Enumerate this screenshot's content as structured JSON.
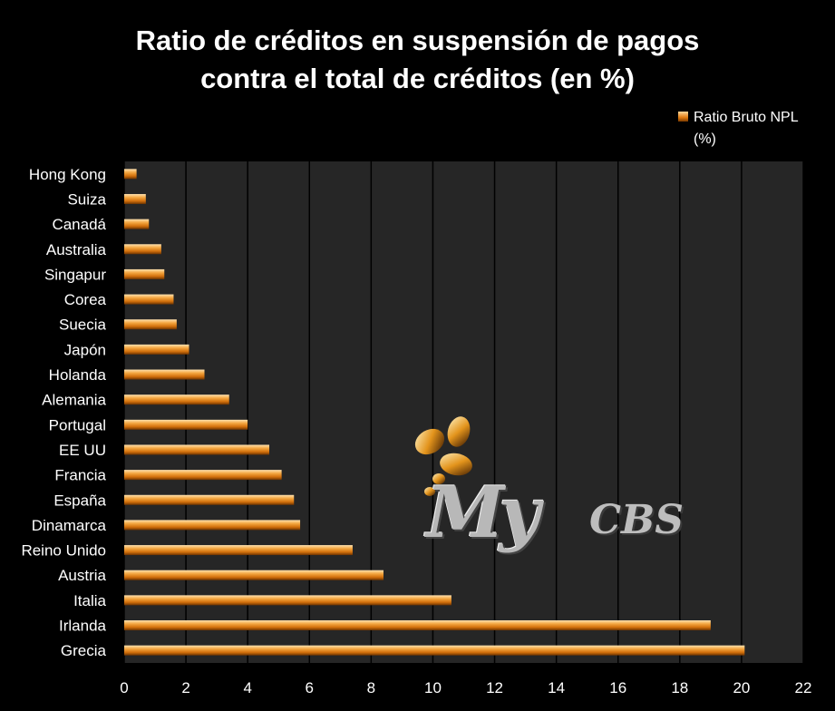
{
  "chart_data": {
    "type": "bar",
    "orientation": "horizontal",
    "title_lines": [
      "Ratio de créditos en suspensión de pagos",
      "contra el total de créditos (en %)"
    ],
    "categories": [
      "Hong Kong",
      "Suiza",
      "Canadá",
      "Australia",
      "Singapur",
      "Corea",
      "Suecia",
      "Japón",
      "Holanda",
      "Alemania",
      "Portugal",
      "EE UU",
      "Francia",
      "España",
      "Dinamarca",
      "Reino Unido",
      "Austria",
      "Italia",
      "Irlanda",
      "Grecia"
    ],
    "series": [
      {
        "name": "Ratio Bruto NPL (%)",
        "values": [
          0.4,
          0.7,
          0.8,
          1.2,
          1.3,
          1.6,
          1.7,
          2.1,
          2.6,
          3.4,
          4.0,
          4.7,
          5.1,
          5.5,
          5.7,
          7.4,
          8.4,
          10.6,
          19.0,
          20.1
        ]
      }
    ],
    "xlim": [
      0,
      22
    ],
    "x_ticks": [
      "0",
      "2",
      "4",
      "6",
      "8",
      "10",
      "12",
      "14",
      "16",
      "18",
      "20",
      "22"
    ],
    "grid": "vertical",
    "legend_position": "top-right",
    "colors": {
      "bar": "#e8891a",
      "bar_light": "#ffd89e",
      "bar_dark": "#8a4300",
      "plot_bg": "#262626",
      "grid": "#000000",
      "text": "#ffffff"
    }
  },
  "watermark": {
    "text_my": "My",
    "text_cbs": "CBS"
  }
}
